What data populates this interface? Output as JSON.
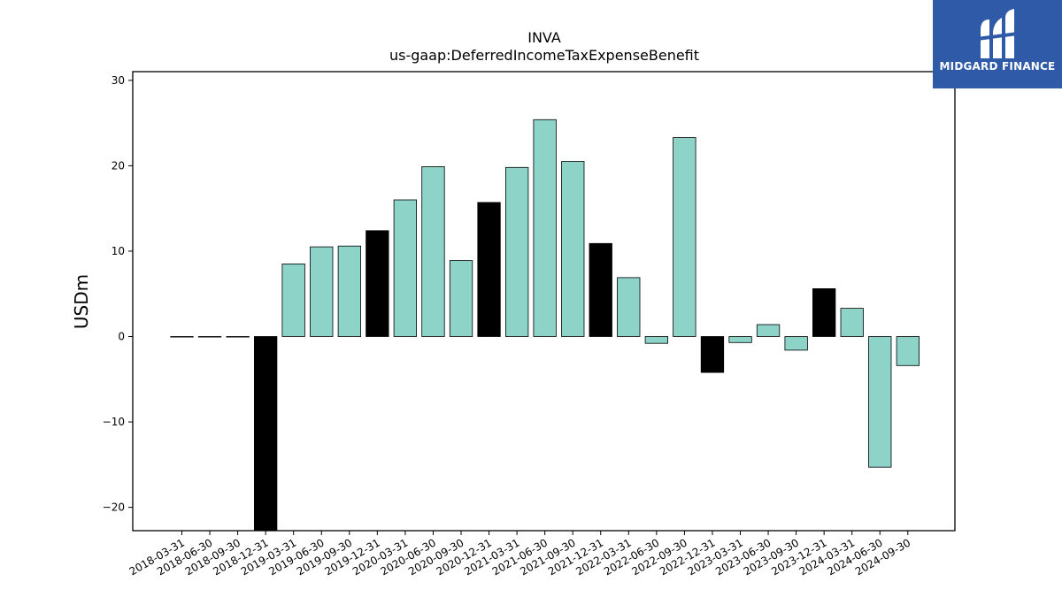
{
  "chart_data": {
    "type": "bar",
    "title": "INVA",
    "subtitle": "us-gaap:DeferredIncomeTaxExpenseBenefit",
    "xlabel": "",
    "ylabel": "USDm",
    "ylim": [
      -23,
      31
    ],
    "yticks": [
      -20,
      -10,
      0,
      10,
      20,
      30
    ],
    "categories": [
      "2018-03-31",
      "2018-06-30",
      "2018-09-30",
      "2018-12-31",
      "2019-03-31",
      "2019-06-30",
      "2019-09-30",
      "2019-12-31",
      "2020-03-31",
      "2020-06-30",
      "2020-09-30",
      "2020-12-31",
      "2021-03-31",
      "2021-06-30",
      "2021-09-30",
      "2021-12-31",
      "2022-03-31",
      "2022-06-30",
      "2022-09-30",
      "2022-12-31",
      "2023-03-31",
      "2023-06-30",
      "2023-09-30",
      "2023-12-31",
      "2024-03-31",
      "2024-06-30",
      "2024-09-30"
    ],
    "values": [
      0,
      0,
      0,
      -23,
      8.5,
      10.5,
      10.6,
      12.4,
      16.0,
      19.9,
      8.9,
      15.7,
      19.8,
      25.4,
      20.5,
      10.9,
      6.9,
      -0.8,
      23.3,
      -4.2,
      -0.7,
      1.4,
      -1.6,
      5.6,
      3.3,
      -15.3,
      -3.4
    ],
    "year_end": [
      false,
      false,
      false,
      true,
      false,
      false,
      false,
      true,
      false,
      false,
      false,
      true,
      false,
      false,
      false,
      true,
      false,
      false,
      false,
      true,
      false,
      false,
      false,
      true,
      false,
      false,
      false
    ],
    "colors": {
      "quarter": "#8dd3c7",
      "year_end": "#000000",
      "edge": "#000000"
    },
    "grid": false,
    "legend": "none"
  },
  "logo": {
    "text": "MIDGARD FINANCE",
    "background": "#2f5aa8"
  }
}
